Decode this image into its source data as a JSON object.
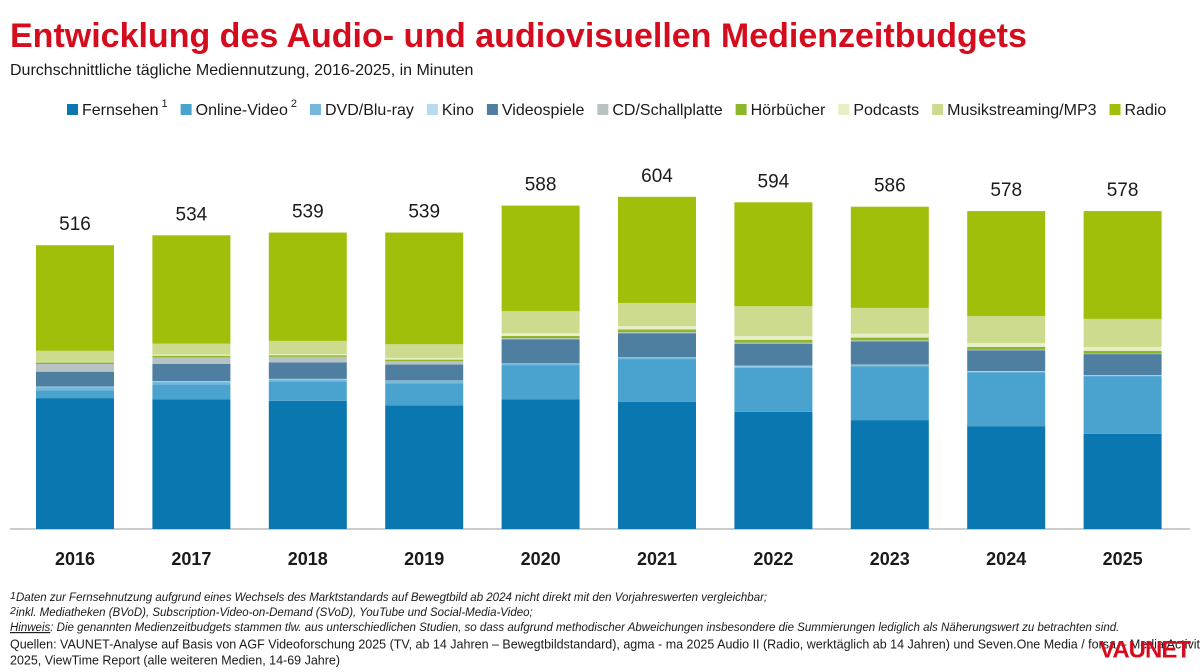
{
  "chart_data": {
    "type": "stacked-bar",
    "title": "Entwicklung des Audio- und audiovisuellen Medienzeitbudgets",
    "subtitle": "Durchschnittliche tägliche Mediennutzung, 2016-2025, in Minuten",
    "categories": [
      "2016",
      "2017",
      "2018",
      "2019",
      "2020",
      "2021",
      "2022",
      "2023",
      "2024",
      "2025"
    ],
    "totals": [
      516,
      534,
      539,
      539,
      588,
      604,
      594,
      586,
      578,
      578
    ],
    "ylim": [
      0,
      650
    ],
    "series": [
      {
        "name": "Fernsehen",
        "footnote_mark": "1",
        "color": "#0b77b0",
        "values": [
          238,
          236,
          233,
          225,
          236,
          231,
          213,
          198,
          187,
          173
        ]
      },
      {
        "name": "Online-Video",
        "footnote_mark": "2",
        "color": "#4aa3cf",
        "values": [
          14,
          27,
          35,
          40,
          62,
          78,
          80,
          98,
          98,
          105
        ]
      },
      {
        "name": "DVD/Blu-ray",
        "color": "#74b9dc",
        "values": [
          6,
          5,
          4,
          4,
          2,
          2,
          3,
          2,
          1,
          1
        ]
      },
      {
        "name": "Kino",
        "color": "#b6dbee",
        "values": [
          1,
          1,
          1,
          1,
          1,
          1,
          1,
          1,
          1,
          1
        ]
      },
      {
        "name": "Videospiele",
        "color": "#4f7fa0",
        "values": [
          27,
          31,
          30,
          29,
          44,
          44,
          40,
          42,
          38,
          38
        ]
      },
      {
        "name": "CD/Schallplatte",
        "color": "#b9c2c3",
        "values": [
          14,
          12,
          10,
          6,
          2,
          2,
          2,
          2,
          1,
          1
        ]
      },
      {
        "name": "Hörbücher",
        "color": "#8db72a",
        "values": [
          3,
          3,
          3,
          3,
          4,
          5,
          5,
          5,
          5,
          5
        ]
      },
      {
        "name": "Podcasts",
        "color": "#e6efc6",
        "values": [
          1,
          2,
          2,
          3,
          5,
          6,
          7,
          7,
          7,
          7
        ]
      },
      {
        "name": "Musikstreaming/MP3",
        "color": "#cddb8e",
        "values": [
          20,
          20,
          24,
          25,
          40,
          42,
          54,
          47,
          49,
          51
        ]
      },
      {
        "name": "Radio",
        "color": "#9fbf0b",
        "values": [
          192,
          197,
          197,
          203,
          192,
          193,
          189,
          184,
          191,
          196
        ]
      }
    ],
    "footnotes": [
      "Daten zur Fernsehnutzung aufgrund eines Wechsels des Marktstandards auf Bewegtbild ab 2024 nicht direkt mit den Vorjahreswerten vergleichbar;",
      "inkl. Mediatheken (BVoD), Subscription-Video-on-Demand (SVoD), YouTube und Social-Media-Video;"
    ],
    "note_label": "Hinweis",
    "note_text": ": Die genannten Medienzeitbudgets stammen tlw. aus unterschiedlichen Studien, so dass aufgrund methodischer Abweichungen insbesondere die Summierungen lediglich als Näherungswert zu betrachten sind.",
    "sources": [
      "Quellen: VAUNET-Analyse auf Basis von AGF Videoforschung 2025 (TV, ab 14 Jahren – Bewegtbildstandard), agma - ma 2025 Audio II (Radio, werktäglich ab 14 Jahren) und Seven.One Media / forsa – Media Activity Guide",
      "2025, ViewTime Report (alle weiteren Medien, 14-69 Jahre)"
    ],
    "logo": "VAUNET"
  }
}
